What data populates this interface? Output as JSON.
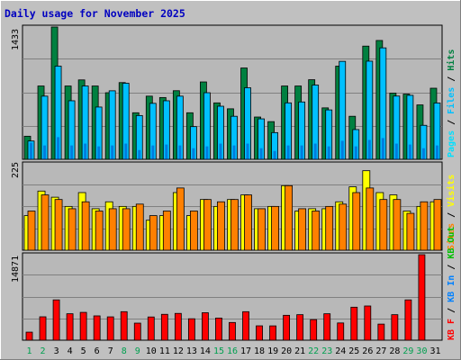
{
  "title": "Daily usage for November 2025",
  "colors": {
    "background": "#C0C0C0",
    "panel": "#B8B8B8",
    "title": "#0000C0",
    "hits": "#008040",
    "files": "#00C0FF",
    "pages": "#00E0FF",
    "visits": "#FFFF00",
    "sites": "#FF8000",
    "kbin": "#0080FF",
    "kbout": "#00C000",
    "kbf": "#FF0000",
    "weekend": "#00A050",
    "weekday": "#000000"
  },
  "chart_data": [
    {
      "type": "bar",
      "name": "hits-files-pages",
      "categories": [
        "1",
        "2",
        "3",
        "4",
        "5",
        "6",
        "7",
        "8",
        "9",
        "10",
        "11",
        "12",
        "13",
        "14",
        "15",
        "16",
        "17",
        "18",
        "19",
        "20",
        "21",
        "22",
        "23",
        "24",
        "25",
        "26",
        "27",
        "28",
        "29",
        "30",
        "31"
      ],
      "weekend_days": [
        1,
        2,
        8,
        9,
        15,
        16,
        22,
        23,
        29,
        30
      ],
      "ymax_label": "1433",
      "ylim": [
        0,
        1433
      ],
      "series": [
        {
          "name": "Hits",
          "values": [
            250,
            794,
            1433,
            794,
            860,
            794,
            721,
            831,
            504,
            684,
            669,
            743,
            504,
            838,
            611,
            547,
            989,
            458,
            408,
            794,
            794,
            862,
            557,
            1009,
            466,
            1226,
            1287,
            717,
            706,
            589,
            770
          ]
        },
        {
          "name": "Files",
          "values": [
            198,
            684,
            1009,
            634,
            794,
            566,
            742,
            824,
            474,
            606,
            634,
            684,
            354,
            721,
            575,
            466,
            775,
            438,
            289,
            611,
            621,
            804,
            535,
            1061,
            322,
            1063,
            1207,
            685,
            693,
            368,
            610
          ]
        },
        {
          "name": "Pages",
          "values": [
            180,
            150,
            240,
            150,
            170,
            140,
            150,
            170,
            100,
            150,
            160,
            150,
            120,
            140,
            170,
            150,
            170,
            120,
            90,
            150,
            150,
            170,
            140,
            200,
            140,
            210,
            230,
            170,
            160,
            120,
            150
          ]
        }
      ],
      "legend": [
        "Hits",
        "Files",
        "Pages"
      ],
      "legend_placement": "right"
    },
    {
      "type": "bar",
      "name": "visits-sites",
      "categories": [
        "1",
        "2",
        "3",
        "4",
        "5",
        "6",
        "7",
        "8",
        "9",
        "10",
        "11",
        "12",
        "13",
        "14",
        "15",
        "16",
        "17",
        "18",
        "19",
        "20",
        "21",
        "22",
        "23",
        "24",
        "25",
        "26",
        "27",
        "28",
        "29",
        "30",
        "31"
      ],
      "ymax_label": "225",
      "ylim": [
        0,
        225
      ],
      "series": [
        {
          "name": "Visits",
          "values": [
            90,
            154,
            138,
            114,
            150,
            108,
            126,
            114,
            114,
            78,
            90,
            150,
            90,
            132,
            114,
            132,
            144,
            108,
            114,
            168,
            102,
            108,
            108,
            126,
            165,
            207,
            150,
            144,
            102,
            114,
            126
          ]
        },
        {
          "name": "Sites",
          "values": [
            102,
            144,
            132,
            108,
            126,
            102,
            108,
            108,
            120,
            90,
            102,
            162,
            102,
            132,
            126,
            132,
            144,
            108,
            114,
            168,
            108,
            102,
            114,
            120,
            150,
            162,
            132,
            132,
            96,
            126,
            132
          ]
        }
      ],
      "legend": [
        "Visits",
        "Sites"
      ],
      "legend_placement": "right"
    },
    {
      "type": "bar",
      "name": "kbytes",
      "categories": [
        "1",
        "2",
        "3",
        "4",
        "5",
        "6",
        "7",
        "8",
        "9",
        "10",
        "11",
        "12",
        "13",
        "14",
        "15",
        "16",
        "17",
        "18",
        "19",
        "20",
        "21",
        "22",
        "23",
        "24",
        "25",
        "26",
        "27",
        "28",
        "29",
        "30",
        "31"
      ],
      "ymax_label": "14871",
      "ylim": [
        0,
        14871
      ],
      "series": [
        {
          "name": "KB F",
          "values": [
            1400,
            4070,
            7010,
            4600,
            4840,
            4230,
            4060,
            4960,
            2970,
            4040,
            4500,
            4660,
            3730,
            4780,
            3850,
            3080,
            4960,
            2500,
            2490,
            4330,
            4440,
            3580,
            4600,
            3000,
            5740,
            5950,
            2800,
            4440,
            7010,
            14871,
            0
          ]
        }
      ],
      "legend": [
        "KB F",
        "KB In",
        "KB Out"
      ],
      "legend_placement": "right"
    }
  ]
}
